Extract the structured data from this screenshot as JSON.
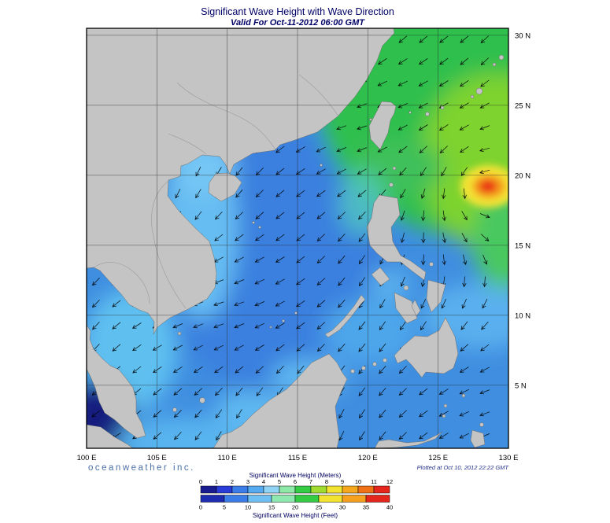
{
  "title": "Significant Wave Height with Wave Direction",
  "subtitle": "Valid For Oct-11-2012 06:00 GMT",
  "branding": {
    "logo_text": "oceanweather inc.",
    "plotted_note": "Plotted at Oct 10, 2012 22:22 GMT"
  },
  "axes": {
    "lon_labels": [
      "100 E",
      "105 E",
      "110 E",
      "115 E",
      "120 E",
      "125 E",
      "130 E"
    ],
    "lat_labels": [
      "30 N",
      "25 N",
      "20 N",
      "15 N",
      "10 N",
      "5 N"
    ]
  },
  "legend": {
    "meters_label": "Significant Wave Height (Meters)",
    "feet_label": "Significant Wave Height (Feet)",
    "meters_ticks": [
      "0",
      "1",
      "2",
      "3",
      "4",
      "5",
      "6",
      "7",
      "8",
      "9",
      "10",
      "11",
      "12"
    ],
    "feet_ticks": [
      "0",
      "5",
      "10",
      "15",
      "20",
      "25",
      "30",
      "35",
      "40"
    ],
    "meters_colors": [
      "#181c8f",
      "#2a3cd8",
      "#3a7ce8",
      "#55aaf0",
      "#8fd4f4",
      "#8ee8a8",
      "#33cc44",
      "#a0dc30",
      "#f2e330",
      "#f5a81e",
      "#ef7015",
      "#e5261c"
    ],
    "feet_colors": [
      "#1c2bb0",
      "#3a7ce8",
      "#6fc0f2",
      "#8ee8b0",
      "#33cc44",
      "#f2e330",
      "#f5a01e",
      "#e5261c"
    ]
  },
  "palette": {
    "land": "#c4c4c4",
    "land_edge": "#6e6e6e",
    "ocean_base": "#3f8ee0",
    "grid": "#222222",
    "arrow": "#000000",
    "frame": "#000000",
    "title_color": "#000066"
  }
}
